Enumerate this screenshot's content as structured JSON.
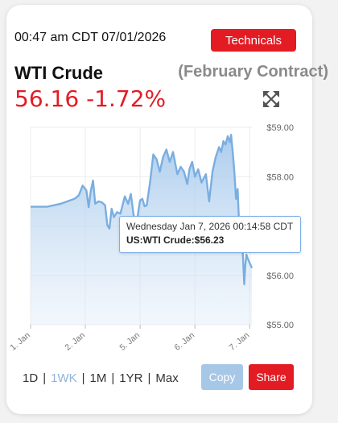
{
  "header": {
    "timestamp": "00:47 am CDT 07/01/2026",
    "technicals_label": "Technicals",
    "instrument": "WTI Crude",
    "contract": "(February Contract)",
    "price": "56.16",
    "change": "-1.72%",
    "expand_icon": "expand-arrows-icon"
  },
  "tooltip": {
    "datetime": "Wednesday Jan 7, 2026 00:14:58 CDT",
    "label": "US:WTI Crude:",
    "value": "$56.23"
  },
  "controls": {
    "ranges": [
      "1D",
      "1WK",
      "1M",
      "1YR",
      "Max"
    ],
    "active_range": "1WK",
    "copy_label": "Copy",
    "share_label": "Share"
  },
  "colors": {
    "accent_red": "#e31b23",
    "line_blue": "#7aaee0",
    "copy_blue": "#a7c7e7"
  },
  "chart_data": {
    "type": "area",
    "y_ticks": [
      "$59.00",
      "$58.00",
      "$57.00",
      "$56.00",
      "$55.00"
    ],
    "y_tick_values": [
      59,
      58,
      57,
      56,
      55
    ],
    "ylim": [
      55,
      59
    ],
    "x_ticks": [
      "1. Jan",
      "2. Jan",
      "5. Jan",
      "6. Jan",
      "7. Jan"
    ],
    "x_tick_index": [
      0,
      1,
      2,
      3,
      4
    ],
    "grid": true,
    "series": [
      {
        "values": [
          [
            0.0,
            57.39
          ],
          [
            0.3,
            57.39
          ],
          [
            0.55,
            57.45
          ],
          [
            0.8,
            57.55
          ],
          [
            0.88,
            57.62
          ],
          [
            0.95,
            57.82
          ],
          [
            1.02,
            57.72
          ],
          [
            1.06,
            57.38
          ],
          [
            1.1,
            57.72
          ],
          [
            1.14,
            57.92
          ],
          [
            1.18,
            57.45
          ],
          [
            1.24,
            57.5
          ],
          [
            1.3,
            57.48
          ],
          [
            1.36,
            57.42
          ],
          [
            1.4,
            57.02
          ],
          [
            1.44,
            56.95
          ],
          [
            1.48,
            57.35
          ],
          [
            1.52,
            57.18
          ],
          [
            1.58,
            57.28
          ],
          [
            1.64,
            57.25
          ],
          [
            1.72,
            57.6
          ],
          [
            1.78,
            57.45
          ],
          [
            1.83,
            57.65
          ],
          [
            1.88,
            57.22
          ],
          [
            1.93,
            57.0
          ],
          [
            1.97,
            57.32
          ],
          [
            2.0,
            57.52
          ],
          [
            2.04,
            57.55
          ],
          [
            2.08,
            57.4
          ],
          [
            2.12,
            57.42
          ],
          [
            2.18,
            57.88
          ],
          [
            2.24,
            58.45
          ],
          [
            2.3,
            58.35
          ],
          [
            2.36,
            58.1
          ],
          [
            2.42,
            58.4
          ],
          [
            2.48,
            58.55
          ],
          [
            2.54,
            58.3
          ],
          [
            2.6,
            58.5
          ],
          [
            2.68,
            58.05
          ],
          [
            2.74,
            58.2
          ],
          [
            2.8,
            58.1
          ],
          [
            2.86,
            57.85
          ],
          [
            2.9,
            58.15
          ],
          [
            2.95,
            58.3
          ],
          [
            3.0,
            58.0
          ],
          [
            3.06,
            58.15
          ],
          [
            3.12,
            57.88
          ],
          [
            3.2,
            58.05
          ],
          [
            3.26,
            57.5
          ],
          [
            3.32,
            58.1
          ],
          [
            3.38,
            58.4
          ],
          [
            3.44,
            58.6
          ],
          [
            3.48,
            58.5
          ],
          [
            3.52,
            58.72
          ],
          [
            3.56,
            58.65
          ],
          [
            3.6,
            58.82
          ],
          [
            3.64,
            58.7
          ],
          [
            3.66,
            58.85
          ],
          [
            3.69,
            58.5
          ],
          [
            3.72,
            58.1
          ],
          [
            3.75,
            57.55
          ],
          [
            3.78,
            57.75
          ],
          [
            3.81,
            56.95
          ],
          [
            3.84,
            56.7
          ],
          [
            3.87,
            56.55
          ],
          [
            3.9,
            55.82
          ],
          [
            3.92,
            56.2
          ],
          [
            3.94,
            56.42
          ],
          [
            3.96,
            56.35
          ],
          [
            4.0,
            56.25
          ],
          [
            4.04,
            56.15
          ]
        ]
      }
    ]
  }
}
